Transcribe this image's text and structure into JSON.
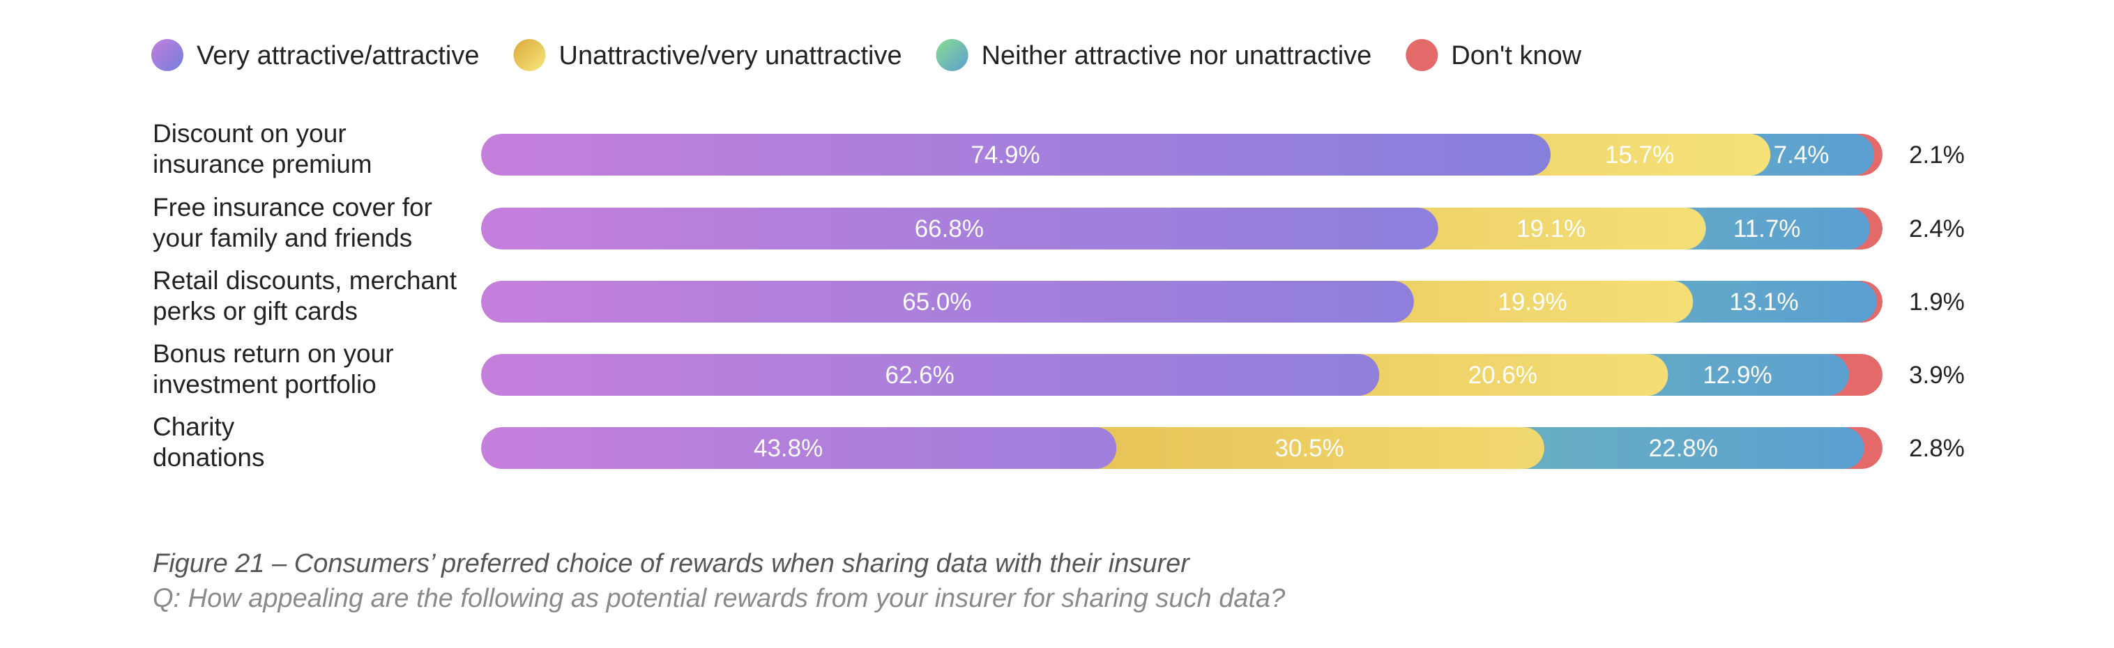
{
  "chart_data": {
    "type": "bar",
    "orientation": "horizontal",
    "stacked": true,
    "unit": "%",
    "categories": [
      [
        "Discount on your",
        "insurance premium"
      ],
      [
        "Free insurance cover for",
        "your family and friends"
      ],
      [
        "Retail discounts, merchant",
        "perks or gift cards"
      ],
      [
        "Bonus return on your",
        "investment portfolio"
      ],
      [
        "Charity",
        "donations"
      ]
    ],
    "series": [
      {
        "name": "Very attractive/attractive",
        "colors": [
          "#c57fdc",
          "#737fdc"
        ],
        "values": [
          74.9,
          66.8,
          65.0,
          62.6,
          43.8
        ]
      },
      {
        "name": "Unattractive/very unattractive",
        "colors": [
          "#dba93a",
          "#f8e77f"
        ],
        "values": [
          15.7,
          19.1,
          19.9,
          20.6,
          30.5
        ]
      },
      {
        "name": "Neither attractive nor unattractive",
        "colors": [
          "#8bdc90",
          "#5b9fd2"
        ],
        "values": [
          7.4,
          11.7,
          13.1,
          12.9,
          22.8
        ]
      },
      {
        "name": "Don't know",
        "colors": [
          "#e46a6a",
          "#e46a6a"
        ],
        "values": [
          2.1,
          2.4,
          1.9,
          3.9,
          2.8
        ]
      }
    ],
    "xlim": [
      0,
      100
    ],
    "legend": "top",
    "grid": false
  },
  "caption": {
    "title": "Figure 21 – Consumers’ preferred choice of rewards when sharing data with their insurer",
    "question": "Q: How appealing are the following as potential rewards from your insurer for sharing such data?"
  }
}
